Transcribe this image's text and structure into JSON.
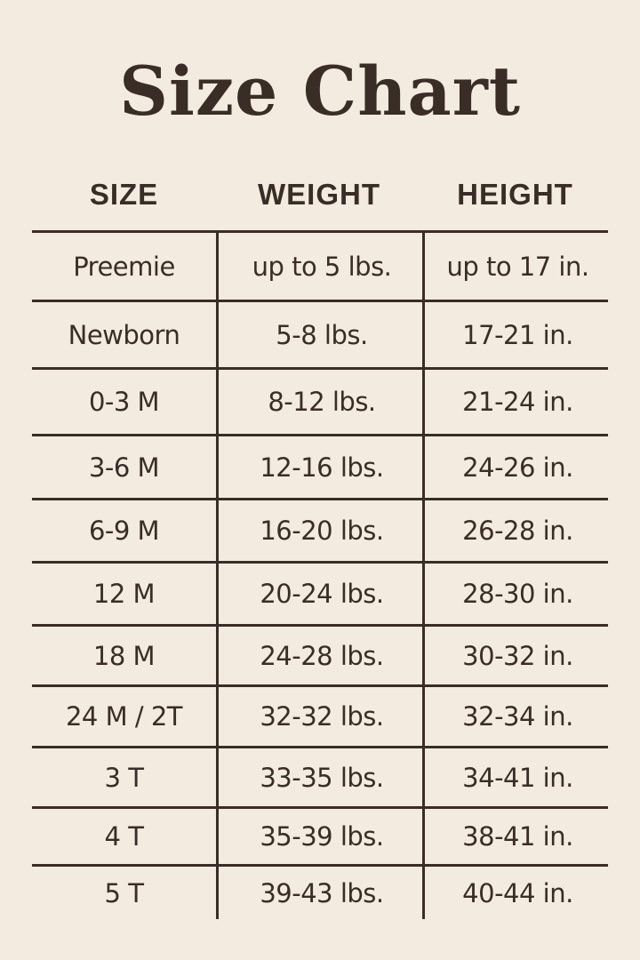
{
  "title": "Size Chart",
  "colors": {
    "background": "#f3ebe0",
    "text": "#3a2d25"
  },
  "table": {
    "headers": [
      "SIZE",
      "WEIGHT",
      "HEIGHT"
    ],
    "rows": [
      [
        "Preemie",
        "up to 5 lbs.",
        "up to 17 in."
      ],
      [
        "Newborn",
        "5-8 lbs.",
        "17-21 in."
      ],
      [
        "0-3 M",
        "8-12 lbs.",
        "21-24 in."
      ],
      [
        "3-6 M",
        "12-16 lbs.",
        "24-26 in."
      ],
      [
        "6-9 M",
        "16-20 lbs.",
        "26-28 in."
      ],
      [
        "12 M",
        "20-24 lbs.",
        "28-30 in."
      ],
      [
        "18 M",
        "24-28 lbs.",
        "30-32 in."
      ],
      [
        "24 M / 2T",
        "32-32 lbs.",
        "32-34 in."
      ],
      [
        "3 T",
        "33-35 lbs.",
        "34-41 in."
      ],
      [
        "4 T",
        "35-39 lbs.",
        "38-41 in."
      ],
      [
        "5 T",
        "39-43 lbs.",
        "40-44 in."
      ]
    ]
  }
}
